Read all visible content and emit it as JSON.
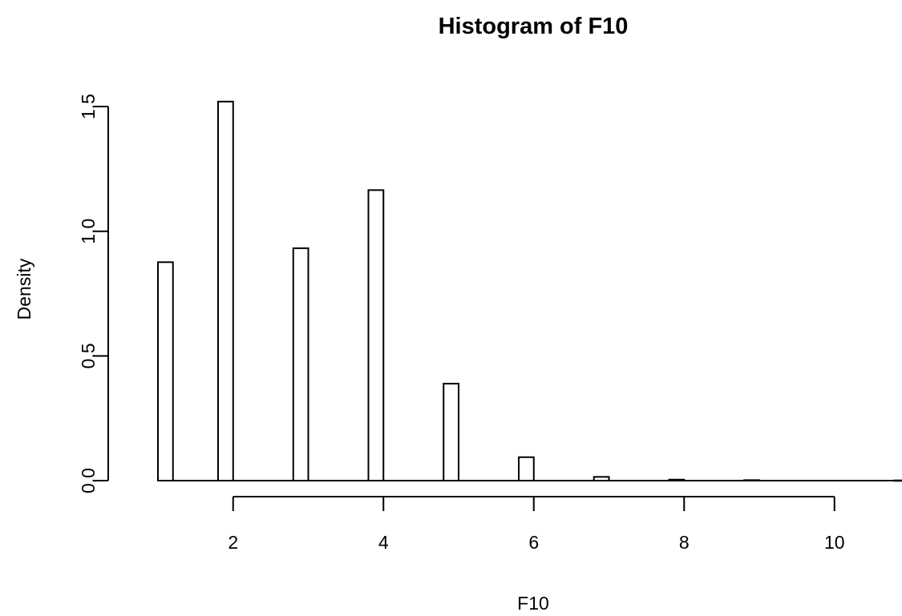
{
  "chart_data": {
    "type": "bar",
    "title": "Histogram of F10",
    "xlabel": "F10",
    "ylabel": "Density",
    "bin_width": 0.2,
    "bins": [
      {
        "x_start": 1.0,
        "x_end": 1.2,
        "density": 0.876
      },
      {
        "x_start": 1.8,
        "x_end": 2.0,
        "density": 1.52
      },
      {
        "x_start": 2.8,
        "x_end": 3.0,
        "density": 0.932
      },
      {
        "x_start": 3.8,
        "x_end": 4.0,
        "density": 1.165
      },
      {
        "x_start": 4.8,
        "x_end": 5.0,
        "density": 0.389
      },
      {
        "x_start": 5.8,
        "x_end": 6.0,
        "density": 0.094
      },
      {
        "x_start": 6.8,
        "x_end": 7.0,
        "density": 0.015
      },
      {
        "x_start": 7.8,
        "x_end": 8.0,
        "density": 0.004
      },
      {
        "x_start": 8.8,
        "x_end": 9.0,
        "density": 0.002
      },
      {
        "x_start": 10.8,
        "x_end": 11.0,
        "density": 0.001
      }
    ],
    "x_axis": {
      "ticks": [
        2,
        4,
        6,
        8,
        10
      ],
      "tick_labels": [
        "2",
        "4",
        "6",
        "8",
        "10"
      ],
      "range": [
        1.0,
        11.0
      ]
    },
    "y_axis": {
      "ticks": [
        0.0,
        0.5,
        1.0,
        1.5
      ],
      "tick_labels": [
        "0.0",
        "0.5",
        "1.0",
        "1.5"
      ],
      "range": [
        0.0,
        1.5
      ]
    },
    "grid": false,
    "bar_fill": "#ffffff",
    "bar_stroke": "#000000"
  }
}
